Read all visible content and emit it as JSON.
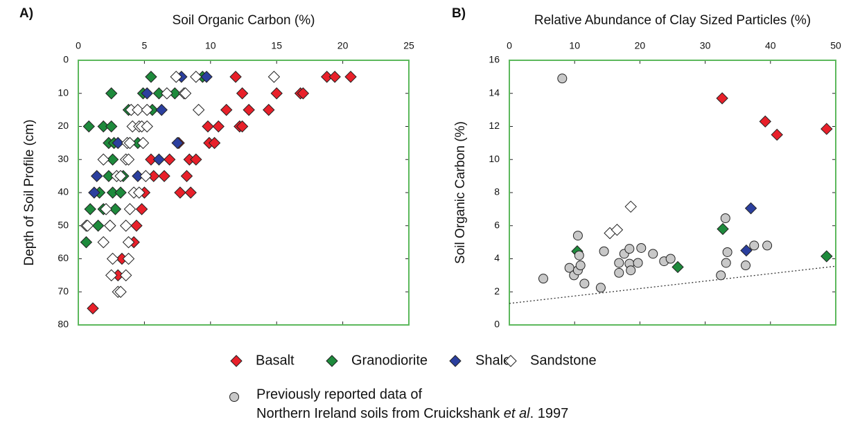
{
  "chart_data": [
    {
      "type": "scatter",
      "panel_label": "A)",
      "x_label": "Soil Organic Carbon (%)",
      "y_label": "Depth of Soil Profile (cm)",
      "xlim": [
        0,
        25
      ],
      "xticks": [
        0,
        5,
        10,
        15,
        20,
        25
      ],
      "ylim": [
        0,
        80
      ],
      "yticks": [
        0,
        10,
        20,
        30,
        40,
        50,
        60,
        70,
        80
      ],
      "y_inverted": true,
      "x_axis_position": "top",
      "frame_color": "#5cb85c",
      "series": [
        {
          "name": "Basalt",
          "color": "#e8202a",
          "marker": "diamond",
          "x": [
            11.9,
            18.8,
            19.4,
            20.6,
            12.4,
            15.0,
            16.8,
            17.0,
            11.2,
            12.9,
            14.4,
            9.8,
            10.6,
            12.2,
            12.4,
            7.6,
            9.9,
            10.3,
            5.5,
            6.9,
            8.4,
            8.9,
            5.7,
            6.5,
            8.2,
            5.0,
            7.7,
            8.5,
            4.8,
            4.4,
            4.2,
            3.3,
            3.0,
            1.1
          ],
          "y": [
            5,
            5,
            5,
            5,
            10,
            10,
            10,
            10,
            15,
            15,
            15,
            20,
            20,
            20,
            20,
            25,
            25,
            25,
            30,
            30,
            30,
            30,
            35,
            35,
            35,
            40,
            40,
            40,
            45,
            50,
            55,
            60,
            65,
            75
          ]
        },
        {
          "name": "Granodiorite",
          "color": "#1e8a3c",
          "marker": "diamond",
          "x": [
            5.5,
            9.4,
            2.5,
            4.9,
            6.1,
            7.3,
            3.8,
            5.6,
            0.8,
            1.9,
            2.5,
            2.3,
            2.7,
            4.5,
            2.6,
            2.3,
            3.4,
            1.6,
            2.6,
            3.2,
            0.9,
            1.9,
            2.8,
            1.5,
            2.4,
            0.6
          ],
          "y": [
            5,
            5,
            10,
            10,
            10,
            10,
            15,
            15,
            20,
            20,
            20,
            25,
            25,
            25,
            30,
            35,
            35,
            40,
            40,
            40,
            45,
            45,
            45,
            50,
            50,
            55
          ]
        },
        {
          "name": "Shale",
          "color": "#2b3f9e",
          "marker": "diamond",
          "x": [
            7.8,
            9.7,
            5.2,
            6.3,
            3.0,
            7.5,
            6.1,
            1.4,
            4.5,
            1.2
          ],
          "y": [
            5,
            5,
            10,
            15,
            25,
            25,
            30,
            35,
            35,
            40
          ]
        },
        {
          "name": "Sandstone",
          "color": "#ffffff",
          "marker": "diamond",
          "x": [
            7.4,
            8.9,
            14.8,
            6.7,
            8.0,
            8.1,
            4.0,
            4.5,
            5.2,
            9.1,
            4.1,
            4.6,
            4.8,
            5.2,
            3.7,
            3.9,
            4.9,
            1.9,
            3.6,
            3.8,
            2.9,
            3.2,
            5.1,
            4.2,
            4.6,
            2.1,
            3.9,
            0.6,
            0.7,
            2.4,
            3.6,
            1.9,
            3.8,
            2.6,
            3.8,
            2.5,
            3.6,
            3.0,
            3.2
          ],
          "y": [
            5,
            5,
            5,
            10,
            10,
            10,
            15,
            15,
            15,
            15,
            20,
            20,
            20,
            20,
            25,
            25,
            25,
            30,
            30,
            30,
            35,
            35,
            35,
            40,
            40,
            45,
            45,
            50,
            50,
            50,
            50,
            55,
            55,
            60,
            60,
            65,
            65,
            70,
            70
          ]
        }
      ]
    },
    {
      "type": "scatter",
      "panel_label": "B)",
      "x_label": "Relative Abundance of Clay Sized Particles (%)",
      "y_label": "Soil Organic Carbon (%)",
      "xlim": [
        0,
        50
      ],
      "xticks": [
        0,
        10,
        20,
        30,
        40,
        50
      ],
      "ylim": [
        0,
        16
      ],
      "yticks": [
        0,
        2,
        4,
        6,
        8,
        10,
        12,
        14,
        16
      ],
      "y_inverted": false,
      "x_axis_position": "top",
      "frame_color": "#5cb85c",
      "series": [
        {
          "color": "#e8202a",
          "marker": "diamond",
          "x": [
            32.6,
            39.2,
            41.0,
            48.6
          ],
          "y": [
            13.7,
            12.3,
            11.5,
            11.85
          ]
        },
        {
          "color": "#1e8a3c",
          "marker": "diamond",
          "x": [
            10.4,
            32.7,
            25.8,
            48.6
          ],
          "y": [
            4.45,
            5.8,
            3.5,
            4.15
          ]
        },
        {
          "color": "#2b3f9e",
          "marker": "diamond",
          "x": [
            37.0,
            36.3
          ],
          "y": [
            7.05,
            4.5
          ]
        },
        {
          "color": "#ffffff",
          "marker": "diamond",
          "x": [
            18.6,
            15.4,
            16.5
          ],
          "y": [
            7.15,
            5.55,
            5.75
          ]
        },
        {
          "color": "#c8c8c8",
          "marker": "circle",
          "x": [
            8.1,
            5.2,
            9.2,
            9.9,
            10.5,
            10.5,
            10.7,
            10.9,
            11.5,
            14.0,
            14.5,
            16.8,
            16.8,
            17.6,
            18.4,
            18.4,
            18.6,
            19.7,
            20.2,
            22.0,
            23.7,
            24.7,
            32.4,
            33.2,
            33.4,
            33.1,
            36.2,
            37.5,
            39.5
          ],
          "y": [
            14.9,
            2.8,
            3.45,
            3.0,
            3.3,
            5.4,
            4.2,
            3.6,
            2.5,
            2.25,
            4.45,
            3.75,
            3.15,
            4.3,
            4.6,
            3.7,
            3.3,
            3.75,
            4.65,
            4.3,
            3.85,
            4.0,
            3.0,
            3.75,
            4.4,
            6.45,
            3.6,
            4.8,
            4.8
          ]
        }
      ],
      "reference_line": {
        "x": [
          0,
          50
        ],
        "y": [
          1.3,
          3.55
        ],
        "style": "dotted"
      }
    }
  ],
  "legend_note": {
    "line1": "Previously reported data of",
    "line2_before": "Northern Ireland soils from Cruickshank ",
    "line2_italic": "et al",
    "line2_after": ". 1997"
  }
}
